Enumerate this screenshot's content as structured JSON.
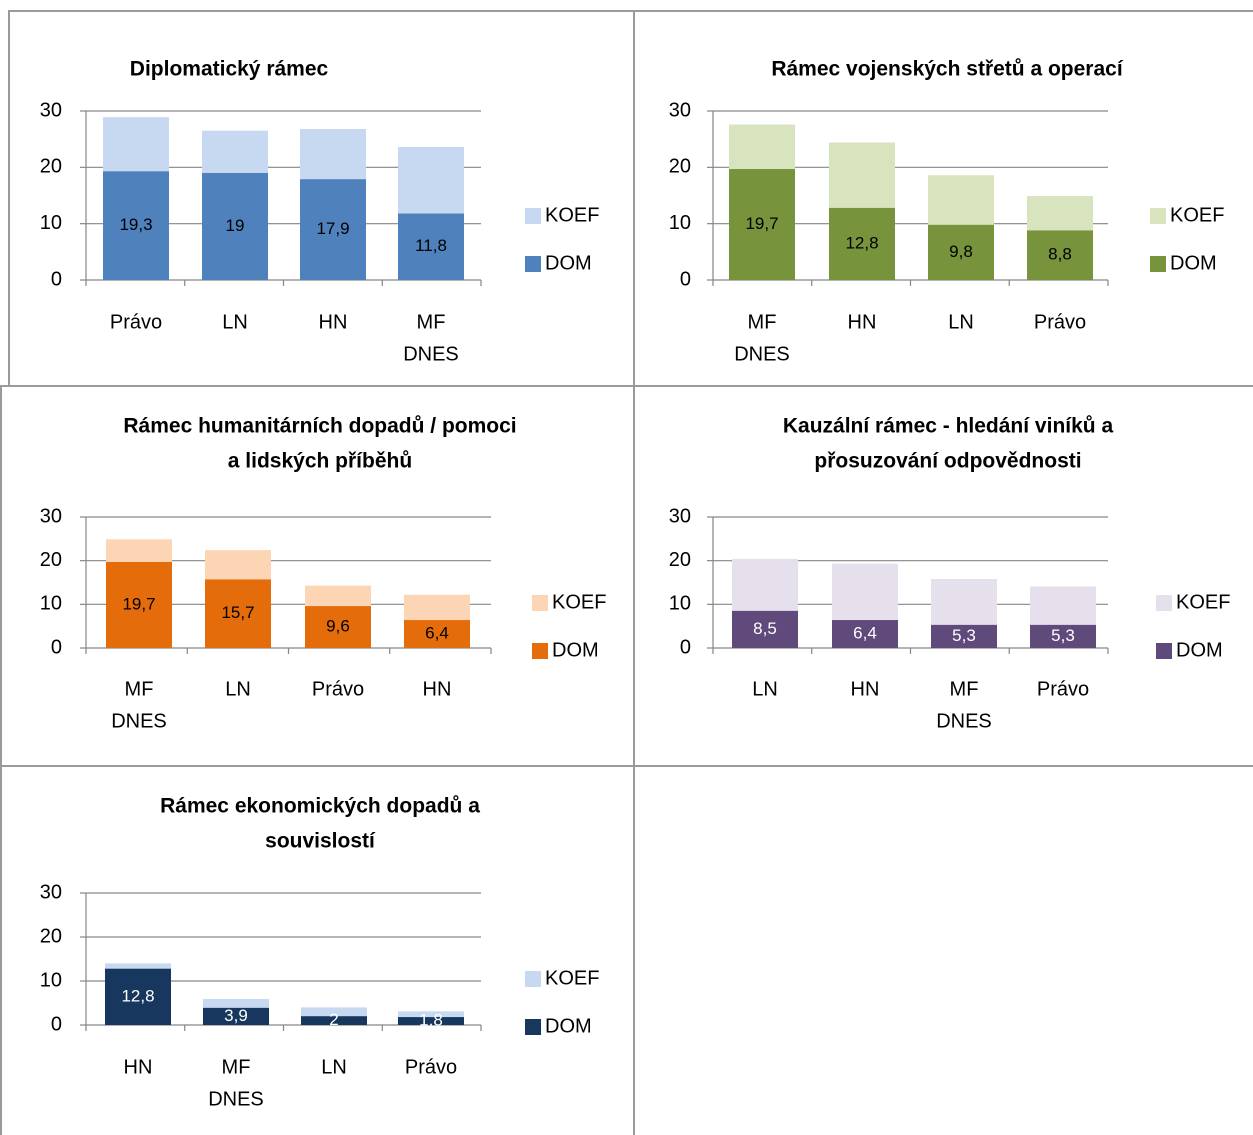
{
  "chart_data": [
    {
      "type": "bar",
      "stacked": true,
      "title": "Diplomatický rámec",
      "categories": [
        "Právo",
        "LN",
        "HN",
        "MF DNES"
      ],
      "series": [
        {
          "name": "DOM",
          "values": [
            19.3,
            19,
            17.9,
            11.8
          ],
          "labels": [
            "19,3",
            "19",
            "17,9",
            "11,8"
          ]
        },
        {
          "name": "KOEF",
          "values": [
            9.6,
            7.5,
            8.9,
            11.8
          ]
        }
      ],
      "colors": {
        "DOM": "#4f81bd",
        "KOEF": "#c6d9f1"
      },
      "label_color": "#000000",
      "ylim": [
        0,
        30
      ],
      "yticks": [
        0,
        10,
        20,
        30
      ],
      "grid": true,
      "legend": "right"
    },
    {
      "type": "bar",
      "stacked": true,
      "title": "Rámec vojenských střetů a operací",
      "categories": [
        "MF DNES",
        "HN",
        "LN",
        "Právo"
      ],
      "series": [
        {
          "name": "DOM",
          "values": [
            19.7,
            12.8,
            9.8,
            8.8
          ],
          "labels": [
            "19,7",
            "12,8",
            "9,8",
            "8,8"
          ]
        },
        {
          "name": "KOEF",
          "values": [
            7.9,
            11.6,
            8.8,
            6.1
          ]
        }
      ],
      "colors": {
        "DOM": "#77933c",
        "KOEF": "#d7e4bd"
      },
      "label_color": "#000000",
      "ylim": [
        0,
        30
      ],
      "yticks": [
        0,
        10,
        20,
        30
      ],
      "grid": true,
      "legend": "right"
    },
    {
      "type": "bar",
      "stacked": true,
      "title": "Rámec humanitárních dopadů / pomoci a lidských příběhů",
      "title_lines": [
        "Rámec humanitárních dopadů / pomoci",
        "a lidských příběhů"
      ],
      "categories": [
        "MF DNES",
        "LN",
        "Právo",
        "HN"
      ],
      "series": [
        {
          "name": "DOM",
          "values": [
            19.7,
            15.7,
            9.6,
            6.4
          ],
          "labels": [
            "19,7",
            "15,7",
            "9,6",
            "6,4"
          ]
        },
        {
          "name": "KOEF",
          "values": [
            5.2,
            6.7,
            4.7,
            5.8
          ]
        }
      ],
      "colors": {
        "DOM": "#e46c0a",
        "KOEF": "#fcd5b5"
      },
      "label_color": "#000000",
      "ylim": [
        0,
        30
      ],
      "yticks": [
        0,
        10,
        20,
        30
      ],
      "grid": true,
      "legend": "right"
    },
    {
      "type": "bar",
      "stacked": true,
      "title": "Kauzální rámec - hledání viníků a přosuzování odpovědnosti",
      "title_lines": [
        "Kauzální rámec - hledání viníků a",
        "přosuzování odpovědnosti"
      ],
      "categories": [
        "LN",
        "HN",
        "MF DNES",
        "Právo"
      ],
      "series": [
        {
          "name": "DOM",
          "values": [
            8.5,
            6.4,
            5.3,
            5.3
          ],
          "labels": [
            "8,5",
            "6,4",
            "5,3",
            "5,3"
          ]
        },
        {
          "name": "KOEF",
          "values": [
            11.9,
            12.9,
            10.5,
            8.8
          ]
        }
      ],
      "colors": {
        "DOM": "#604a7b",
        "KOEF": "#e5e0ec"
      },
      "label_color": "#ffffff",
      "ylim": [
        0,
        30
      ],
      "yticks": [
        0,
        10,
        20,
        30
      ],
      "grid": true,
      "legend": "right"
    },
    {
      "type": "bar",
      "stacked": true,
      "title": "Rámec ekonomických dopadů a souvislostí",
      "title_lines": [
        "Rámec ekonomických dopadů a",
        "souvislostí"
      ],
      "categories": [
        "HN",
        "MF DNES",
        "LN",
        "Právo"
      ],
      "series": [
        {
          "name": "DOM",
          "values": [
            12.8,
            3.9,
            2,
            1.8
          ],
          "labels": [
            "12,8",
            "3,9",
            "2",
            "1,8"
          ]
        },
        {
          "name": "KOEF",
          "values": [
            1.2,
            2.0,
            2.0,
            1.3
          ]
        }
      ],
      "colors": {
        "DOM": "#17375e",
        "KOEF": "#c6d9f1"
      },
      "label_color": "#ffffff",
      "ylim": [
        0,
        30
      ],
      "yticks": [
        0,
        10,
        20,
        30
      ],
      "grid": true,
      "legend": "right"
    }
  ]
}
